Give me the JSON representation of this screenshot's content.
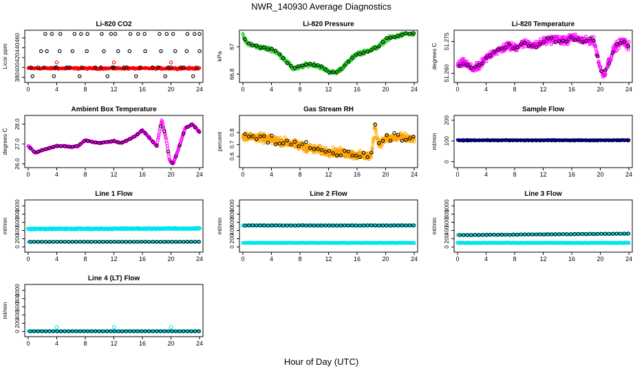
{
  "figure": {
    "title": "NWR_140930  Average Diagnostics",
    "xlabel": "Hour of Day (UTC)"
  },
  "colors": {
    "black": "#000000",
    "red": "#ff0000",
    "green": "#22cc22",
    "magenta": "#ff00ff",
    "orange": "#ffa500",
    "cyan": "#00e5ee",
    "blue": "#0000cc"
  },
  "chart_data": [
    {
      "id": "co2",
      "type": "scatter",
      "title": "Li-820 CO2",
      "ylabel": "Licor ppm",
      "xticks": [
        0,
        4,
        8,
        12,
        16,
        20,
        24
      ],
      "xlim": [
        0,
        24
      ],
      "yticks": [
        380,
        400,
        420,
        440,
        460
      ],
      "ylim": [
        375,
        470
      ],
      "series": [
        {
          "color": "red",
          "kind": "noisy",
          "x_range": [
            0,
            24
          ],
          "center": [
            398,
            398
          ],
          "noise": 1.5,
          "count": 300,
          "size": 1.8
        },
        {
          "color": "black",
          "kind": "points",
          "size": 2.2,
          "x": [
            0.4,
            1.4,
            4.0,
            5.4,
            9.4,
            12.0,
            13.4,
            17.4,
            20.0,
            21.4,
            2.2,
            3.7,
            5.8,
            7.5,
            10.2,
            11.8,
            13.8,
            15.7,
            18.2,
            19.6,
            21.8,
            23.6,
            1.8,
            2.6,
            4.4,
            6.2,
            8.2,
            10.6,
            12.6,
            14.2,
            16.4,
            18.6,
            20.6,
            22.2,
            24.0,
            2.4,
            3.3,
            4.5,
            6.5,
            7.4,
            8.3,
            10.3,
            11.6,
            12.2,
            14.3,
            15.4,
            16.3,
            18.4,
            19.4,
            20.3,
            22.3,
            23.3,
            24.0,
            0.6,
            3.6,
            7.2,
            11.1,
            15.1,
            19.2,
            23.1
          ],
          "y": [
            400,
            400,
            400,
            400,
            400,
            400,
            400,
            400,
            400,
            400,
            400,
            400,
            400,
            400,
            400,
            400,
            400,
            400,
            400,
            400,
            400,
            400,
            433,
            433,
            433,
            433,
            433,
            433,
            433,
            433,
            433,
            433,
            433,
            433,
            433,
            468,
            468,
            468,
            468,
            468,
            468,
            468,
            468,
            468,
            468,
            468,
            468,
            468,
            468,
            468,
            468,
            468,
            468,
            382,
            382,
            382,
            382,
            382,
            382,
            382
          ]
        },
        {
          "color": "red",
          "kind": "points",
          "size": 2.2,
          "x": [
            4.0,
            12.0,
            20.0
          ],
          "y": [
            410,
            410,
            410
          ]
        }
      ]
    },
    {
      "id": "pressure",
      "type": "scatter",
      "title": "Li-820 Pressure",
      "ylabel": "kPa",
      "xticks": [
        0,
        4,
        8,
        12,
        16,
        20,
        24
      ],
      "xlim": [
        0,
        24
      ],
      "yticks": [
        66.8,
        67.0
      ],
      "ylim": [
        66.76,
        67.1
      ],
      "series": [
        {
          "color": "green",
          "kind": "noisy",
          "x_range": [
            0,
            24
          ],
          "noise": 0.012,
          "count": 500,
          "size": 1.8,
          "curve_x": [
            0,
            0.5,
            1,
            2,
            4,
            5,
            6,
            7,
            8,
            9,
            10,
            11,
            12,
            13,
            14,
            15,
            16,
            17,
            18,
            19,
            20,
            21,
            22,
            23,
            24
          ],
          "curve_y": [
            67.08,
            67.03,
            67.02,
            67.0,
            66.98,
            66.95,
            66.9,
            66.84,
            66.85,
            66.87,
            66.87,
            66.85,
            66.82,
            66.81,
            66.85,
            66.9,
            66.95,
            66.96,
            66.98,
            67.0,
            67.05,
            67.07,
            67.08,
            67.1,
            67.09
          ]
        },
        {
          "color": "black",
          "kind": "along",
          "count": 45,
          "noise": 0.008,
          "size": 2.2,
          "x_range": [
            0.3,
            23.9
          ]
        }
      ]
    },
    {
      "id": "temp820",
      "type": "scatter",
      "title": "Li-820 Temperature",
      "ylabel": "degrees C",
      "xticks": [
        0,
        4,
        8,
        12,
        16,
        20,
        24
      ],
      "xlim": [
        0,
        24
      ],
      "yticks": [
        51.26,
        51.275
      ],
      "ytick_labels": [
        "51.260",
        "51.275"
      ],
      "ylim": [
        51.257,
        51.279
      ],
      "series": [
        {
          "color": "magenta",
          "kind": "noisy",
          "x_range": [
            0,
            24
          ],
          "noise": 0.0016,
          "count": 500,
          "size": 2.0,
          "curve_x": [
            0,
            1,
            2,
            3,
            4,
            5,
            6,
            7,
            8,
            9,
            10,
            11,
            12,
            13,
            14,
            15,
            16,
            17,
            18,
            19,
            19.5,
            20,
            20.5,
            21,
            22,
            23,
            24
          ],
          "curve_y": [
            51.264,
            51.265,
            51.262,
            51.263,
            51.267,
            51.27,
            51.271,
            51.273,
            51.272,
            51.274,
            51.274,
            51.273,
            51.275,
            51.276,
            51.276,
            51.275,
            51.277,
            51.276,
            51.275,
            51.276,
            51.27,
            51.262,
            51.259,
            51.264,
            51.272,
            51.275,
            51.273
          ]
        },
        {
          "color": "black",
          "kind": "along",
          "count": 45,
          "noise": 0.001,
          "size": 2.2,
          "x_range": [
            0.3,
            23.9
          ]
        }
      ]
    },
    {
      "id": "boxtemp",
      "type": "scatter",
      "title": "Ambient Box Temperature",
      "ylabel": "degrees C",
      "xticks": [
        0,
        4,
        8,
        12,
        16,
        20,
        24
      ],
      "xlim": [
        0,
        24
      ],
      "yticks": [
        26.0,
        27.0,
        28.0
      ],
      "ytick_labels": [
        "26.0",
        "27.0",
        "28.0"
      ],
      "ylim": [
        25.95,
        28.3
      ],
      "series": [
        {
          "color": "magenta",
          "kind": "noisy",
          "x_range": [
            0,
            24
          ],
          "noise": 0.02,
          "count": 400,
          "size": 2.0,
          "curve_x": [
            0,
            1,
            2,
            3,
            4,
            5,
            6,
            7,
            8,
            9,
            10,
            11,
            12,
            13,
            14,
            15,
            16,
            17,
            18,
            18.7,
            19.3,
            19.8,
            20.3,
            21,
            22,
            23,
            24
          ],
          "curve_y": [
            26.9,
            26.55,
            26.7,
            26.8,
            26.9,
            26.9,
            26.85,
            26.9,
            27.2,
            27.1,
            27.05,
            27.1,
            27.15,
            27.05,
            27.2,
            27.4,
            27.7,
            27.3,
            26.9,
            28.2,
            27.3,
            26.2,
            26.0,
            26.7,
            27.8,
            28.0,
            27.6
          ]
        },
        {
          "color": "black",
          "kind": "along",
          "count": 45,
          "noise": 0.01,
          "size": 2.2,
          "x_range": [
            0.3,
            23.9
          ]
        }
      ]
    },
    {
      "id": "rh",
      "type": "scatter",
      "title": "Gas Stream RH",
      "ylabel": "percent",
      "xticks": [
        0,
        4,
        8,
        12,
        16,
        20,
        24
      ],
      "xlim": [
        0,
        24
      ],
      "yticks": [
        0.6,
        0.7,
        0.8
      ],
      "ylim": [
        0.53,
        0.92
      ],
      "series": [
        {
          "color": "orange",
          "kind": "noisy",
          "x_range": [
            0,
            24
          ],
          "noise": 0.03,
          "count": 700,
          "size": 1.8,
          "curve_x": [
            0,
            2,
            4,
            6,
            8,
            10,
            12,
            14,
            16,
            18,
            18.5,
            19,
            20,
            22,
            24
          ],
          "curve_y": [
            0.77,
            0.76,
            0.74,
            0.72,
            0.69,
            0.66,
            0.64,
            0.63,
            0.61,
            0.6,
            0.86,
            0.7,
            0.75,
            0.76,
            0.74
          ]
        },
        {
          "color": "black",
          "kind": "along",
          "count": 45,
          "noise": 0.03,
          "size": 2.2,
          "x_range": [
            0.3,
            23.9
          ]
        }
      ]
    },
    {
      "id": "sampleflow",
      "type": "scatter",
      "title": "Sample Flow",
      "ylabel": "ml/min",
      "xticks": [
        0,
        4,
        8,
        12,
        16,
        20,
        24
      ],
      "xlim": [
        0,
        24
      ],
      "yticks": [
        0,
        100,
        200
      ],
      "ylim": [
        -15,
        210
      ],
      "series": [
        {
          "color": "blue",
          "kind": "noisy",
          "x_range": [
            0,
            24
          ],
          "center": [
            104,
            104
          ],
          "noise": 1.5,
          "count": 300,
          "size": 1.8
        },
        {
          "color": "black",
          "kind": "noisy",
          "x_range": [
            0.3,
            23.9
          ],
          "center": [
            103,
            103
          ],
          "noise": 1,
          "count": 45,
          "size": 2.2
        }
      ]
    },
    {
      "id": "line1",
      "type": "scatter",
      "title": "Line 1 Flow",
      "ylabel": "ml/min",
      "xticks": [
        0,
        4,
        8,
        12,
        16,
        20,
        24
      ],
      "xlim": [
        0,
        24
      ],
      "yticks": [
        0,
        200,
        400,
        600,
        800,
        1000
      ],
      "ylim": [
        -60,
        1080
      ],
      "series": [
        {
          "color": "cyan",
          "kind": "noisy",
          "x_range": [
            0,
            24
          ],
          "center": [
            440,
            450
          ],
          "noise": 10,
          "count": 300,
          "size": 2.4
        },
        {
          "color": "cyan",
          "kind": "noisy",
          "x_range": [
            0,
            24
          ],
          "center": [
            125,
            125
          ],
          "noise": 3,
          "count": 150,
          "size": 1.8
        },
        {
          "color": "black",
          "kind": "noisy",
          "x_range": [
            0.3,
            23.9
          ],
          "center": [
            125,
            125
          ],
          "noise": 1,
          "count": 45,
          "size": 2.2
        }
      ]
    },
    {
      "id": "line2",
      "type": "scatter",
      "title": "Line 2 Flow",
      "ylabel": "ml/min",
      "xticks": [
        0,
        4,
        8,
        12,
        16,
        20,
        24
      ],
      "xlim": [
        0,
        24
      ],
      "yticks": [
        0,
        200,
        400,
        600,
        800,
        1000
      ],
      "ylim": [
        -60,
        1080
      ],
      "series": [
        {
          "color": "cyan",
          "kind": "noisy",
          "x_range": [
            0,
            24
          ],
          "center": [
            525,
            525
          ],
          "noise": 4,
          "count": 200,
          "size": 2.2
        },
        {
          "color": "cyan",
          "kind": "noisy",
          "x_range": [
            0,
            24
          ],
          "center": [
            100,
            100
          ],
          "noise": 4,
          "count": 200,
          "size": 2.2
        },
        {
          "color": "black",
          "kind": "noisy",
          "x_range": [
            0.3,
            23.9
          ],
          "center": [
            525,
            525
          ],
          "noise": 2,
          "count": 45,
          "size": 2.2
        }
      ]
    },
    {
      "id": "line3",
      "type": "scatter",
      "title": "Line 3 Flow",
      "ylabel": "ml/min",
      "xticks": [
        0,
        4,
        8,
        12,
        16,
        20,
        24
      ],
      "xlim": [
        0,
        24
      ],
      "yticks": [
        0,
        200,
        400,
        600,
        800,
        1000
      ],
      "ylim": [
        -60,
        1080
      ],
      "series": [
        {
          "color": "cyan",
          "kind": "noisy",
          "x_range": [
            0,
            24
          ],
          "center": [
            100,
            100
          ],
          "noise": 4,
          "count": 250,
          "size": 2.2
        },
        {
          "color": "cyan",
          "kind": "noisy",
          "x_range": [
            0,
            24
          ],
          "center": [
            290,
            320
          ],
          "noise": 8,
          "count": 150,
          "size": 2.0
        },
        {
          "color": "black",
          "kind": "noisy",
          "x_range": [
            0.3,
            23.9
          ],
          "center": [
            290,
            325
          ],
          "noise": 4,
          "count": 45,
          "size": 2.2
        }
      ]
    },
    {
      "id": "line4",
      "type": "scatter",
      "title": "Line 4 (LT) Flow",
      "ylabel": "ml/min",
      "xticks": [
        0,
        4,
        8,
        12,
        16,
        20,
        24
      ],
      "xlim": [
        0,
        24
      ],
      "yticks": [
        0,
        200,
        400,
        600,
        800,
        1000
      ],
      "ylim": [
        -60,
        1080
      ],
      "series": [
        {
          "color": "cyan",
          "kind": "noisy",
          "x_range": [
            0,
            24
          ],
          "center": [
            5,
            5
          ],
          "noise": 2,
          "count": 200,
          "size": 2.0
        },
        {
          "color": "black",
          "kind": "noisy",
          "x_range": [
            0.3,
            23.9
          ],
          "center": [
            5,
            5
          ],
          "noise": 1,
          "count": 45,
          "size": 2.2
        },
        {
          "color": "cyan",
          "kind": "points",
          "size": 2.4,
          "x": [
            4.0,
            12.0,
            20.0
          ],
          "y": [
            100,
            100,
            100
          ]
        }
      ]
    }
  ]
}
